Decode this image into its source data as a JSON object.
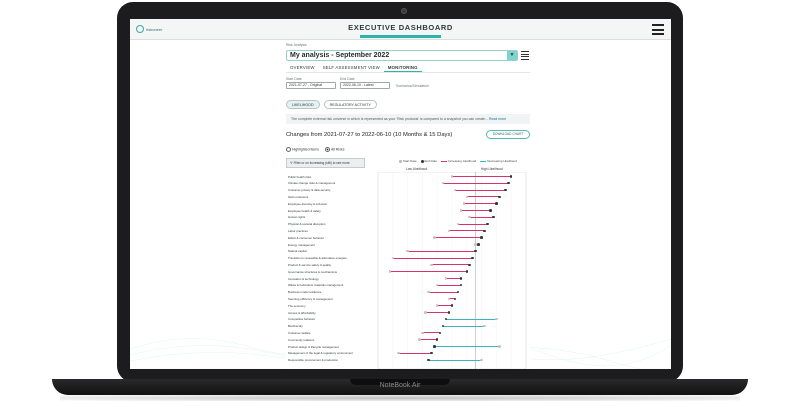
{
  "laptop": {
    "brand": "NoteBook Air"
  },
  "header": {
    "logo_text": "riskoneer",
    "title": "EXECUTIVE DASHBOARD"
  },
  "selector": {
    "label": "Risk Analysis",
    "value": "My analysis - September 2022"
  },
  "tabs": [
    {
      "label": "OVERVIEW",
      "active": false
    },
    {
      "label": "SELF ASSESSMENT VIEW",
      "active": false
    },
    {
      "label": "MONITORING",
      "active": true
    }
  ],
  "dates": {
    "start_label": "Start Date",
    "start_value": "2021-07-27 - Original",
    "end_label": "End Date",
    "end_value": "2022-06-10 - Latest",
    "extra": "Scenarios/Simulation"
  },
  "toggles": [
    {
      "label": "LIKELIHOOD",
      "active": true
    },
    {
      "label": "REGULATORY ACTIVITY",
      "active": false
    }
  ],
  "info": {
    "text": "The complete external risk universe in which is represented as your 'Risk products' is compared to a snapshot you can create...",
    "more": "Read more"
  },
  "chart_title": "Changes from 2021-07-27 to 2022-06-10 (10 Months & 15 Days)",
  "download_label": "DOWNLOAD CHART",
  "radios": [
    {
      "label": "Highlighted Items",
      "on": false
    },
    {
      "label": "All Risks",
      "on": true
    }
  ],
  "filter_text": "Filter or on increasing (still) to see more.",
  "legend": [
    {
      "label": "Start Date",
      "type": "dot",
      "color": "#b8b8b8"
    },
    {
      "label": "End Date",
      "type": "dot",
      "color": "#333333"
    },
    {
      "label": "Increasing Likelihood",
      "type": "line",
      "color": "#d6336c"
    },
    {
      "label": "Decreasing Likelihood",
      "type": "line",
      "color": "#3bb4c1"
    }
  ],
  "axis": {
    "low": "Low Likelihood",
    "high": "High Likelihood"
  },
  "colors": {
    "increase": "#d6336c",
    "decrease": "#3bb4c1",
    "accent": "#2fb3a8"
  },
  "chart_data": {
    "type": "dumbbell",
    "xlim": [
      0,
      1
    ],
    "rows": [
      {
        "label": "Public health risks",
        "start": 0.5,
        "end": 0.9
      },
      {
        "label": "Climate change risks & management",
        "start": 0.44,
        "end": 0.88
      },
      {
        "label": "Customer privacy & data security",
        "start": 0.52,
        "end": 0.86
      },
      {
        "label": "GHG emissions",
        "start": 0.6,
        "end": 0.82
      },
      {
        "label": "Employee diversity & inclusion",
        "start": 0.58,
        "end": 0.8
      },
      {
        "label": "Employee health & safety",
        "start": 0.56,
        "end": 0.76
      },
      {
        "label": "Human rights",
        "start": 0.62,
        "end": 0.78
      },
      {
        "label": "Physical & societal disruption",
        "start": 0.54,
        "end": 0.74
      },
      {
        "label": "Labor practices",
        "start": 0.48,
        "end": 0.72
      },
      {
        "label": "Ethics & consumer behavior",
        "start": 0.38,
        "end": 0.7
      },
      {
        "label": "Energy management",
        "start": 0.66,
        "end": 0.68
      },
      {
        "label": "Natural capital",
        "start": 0.2,
        "end": 0.66
      },
      {
        "label": "Transition to renewable & alternative energies",
        "start": 0.1,
        "end": 0.64
      },
      {
        "label": "Product & service safety & quality",
        "start": 0.36,
        "end": 0.62
      },
      {
        "label": "Governance structures & mechanisms",
        "start": 0.08,
        "end": 0.6
      },
      {
        "label": "Innovation & technology",
        "start": 0.46,
        "end": 0.56
      },
      {
        "label": "Waste & hazardous materials management",
        "start": 0.4,
        "end": 0.56
      },
      {
        "label": "Business model resilience",
        "start": 0.34,
        "end": 0.54
      },
      {
        "label": "Sourcing efficiency & management",
        "start": 0.48,
        "end": 0.52
      },
      {
        "label": "The economy",
        "start": 0.4,
        "end": 0.5
      },
      {
        "label": "Access & affordability",
        "start": 0.32,
        "end": 0.48
      },
      {
        "label": "Competitive behavior",
        "start": 0.8,
        "end": 0.46
      },
      {
        "label": "Biodiversity",
        "start": 0.72,
        "end": 0.44
      },
      {
        "label": "Customer welfare",
        "start": 0.3,
        "end": 0.42
      },
      {
        "label": "Community relations",
        "start": 0.28,
        "end": 0.4
      },
      {
        "label": "Product design & lifecycle management",
        "start": 0.82,
        "end": 0.38
      },
      {
        "label": "Management of the legal & regulatory environment",
        "start": 0.14,
        "end": 0.36
      },
      {
        "label": "Responsible procurement & production",
        "start": 0.7,
        "end": 0.34
      }
    ]
  }
}
